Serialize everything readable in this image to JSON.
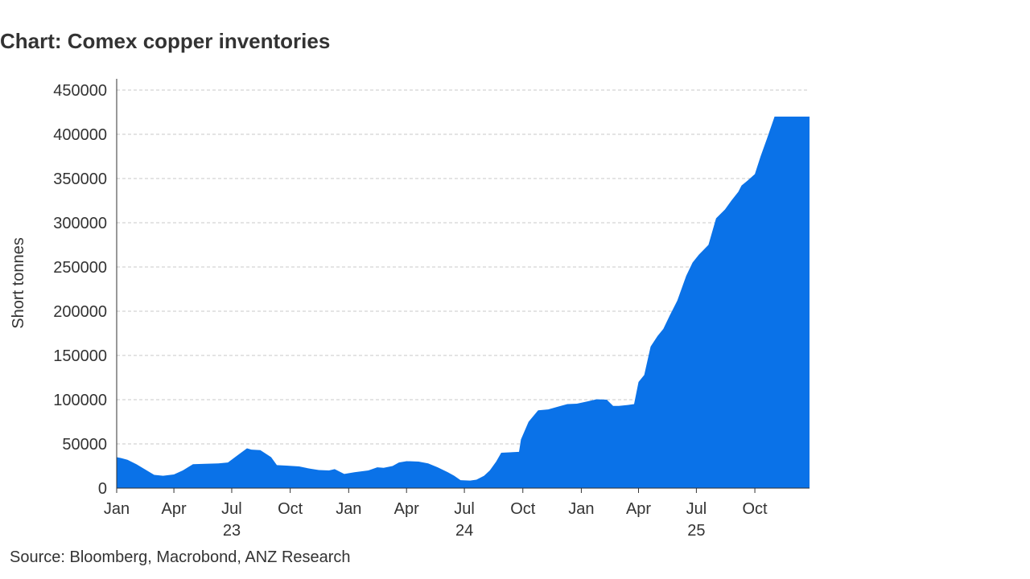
{
  "title": "Chart: Comex copper inventories",
  "source": "Source: Bloomberg, Macrobond, ANZ Research",
  "colors": {
    "area": "#0A72E8",
    "grid": "#C8C8C8",
    "axis": "#333333",
    "text": "#333333"
  },
  "chart_data": {
    "type": "area",
    "title": "Chart: Comex copper inventories",
    "ylabel": "Short tonnes",
    "xlabel": "",
    "ylim": [
      0,
      450000
    ],
    "yticks": [
      0,
      50000,
      100000,
      150000,
      200000,
      250000,
      300000,
      350000,
      400000,
      450000
    ],
    "xlim": [
      "2023-01-01",
      "2025-12-26"
    ],
    "xticks": [
      {
        "date": "2023-01-01",
        "label": "Jan",
        "year": ""
      },
      {
        "date": "2023-04-01",
        "label": "Apr",
        "year": ""
      },
      {
        "date": "2023-07-01",
        "label": "Jul",
        "year": "23"
      },
      {
        "date": "2023-10-01",
        "label": "Oct",
        "year": ""
      },
      {
        "date": "2024-01-01",
        "label": "Jan",
        "year": ""
      },
      {
        "date": "2024-04-01",
        "label": "Apr",
        "year": ""
      },
      {
        "date": "2024-07-01",
        "label": "Jul",
        "year": "24"
      },
      {
        "date": "2024-10-01",
        "label": "Oct",
        "year": ""
      },
      {
        "date": "2025-01-01",
        "label": "Jan",
        "year": ""
      },
      {
        "date": "2025-04-01",
        "label": "Apr",
        "year": ""
      },
      {
        "date": "2025-07-01",
        "label": "Jul",
        "year": "25"
      },
      {
        "date": "2025-10-01",
        "label": "Oct",
        "year": ""
      }
    ],
    "grid": true,
    "series": [
      {
        "x": [
          "2023-01-01",
          "2023-01-08",
          "2023-01-18",
          "2023-02-01",
          "2023-02-15",
          "2023-03-01",
          "2023-03-15",
          "2023-04-01",
          "2023-04-15",
          "2023-05-01",
          "2023-05-20",
          "2023-06-10",
          "2023-06-25",
          "2023-07-10",
          "2023-07-25",
          "2023-08-01",
          "2023-08-15",
          "2023-09-01",
          "2023-09-10",
          "2023-09-25",
          "2023-10-15",
          "2023-11-01",
          "2023-11-15",
          "2023-12-01",
          "2023-12-10",
          "2023-12-25",
          "2024-01-10",
          "2024-02-01",
          "2024-02-15",
          "2024-02-25",
          "2024-03-10",
          "2024-03-20",
          "2024-04-01",
          "2024-04-20",
          "2024-05-05",
          "2024-05-20",
          "2024-06-05",
          "2024-06-15",
          "2024-06-25",
          "2024-07-10",
          "2024-07-20",
          "2024-08-01",
          "2024-08-10",
          "2024-08-20",
          "2024-08-28",
          "2024-09-10",
          "2024-09-25",
          "2024-09-28",
          "2024-10-10",
          "2024-10-25",
          "2024-11-10",
          "2024-11-25",
          "2024-12-10",
          "2024-12-25",
          "2025-01-10",
          "2025-01-25",
          "2025-02-10",
          "2025-02-20",
          "2025-03-01",
          "2025-03-15",
          "2025-03-25",
          "2025-04-01",
          "2025-04-10",
          "2025-04-20",
          "2025-05-01",
          "2025-05-10",
          "2025-05-20",
          "2025-06-01",
          "2025-06-15",
          "2025-06-25",
          "2025-07-05",
          "2025-07-20",
          "2025-08-01",
          "2025-08-15",
          "2025-08-25",
          "2025-09-05",
          "2025-09-10",
          "2025-09-20",
          "2025-10-01",
          "2025-10-10",
          "2025-10-20",
          "2025-11-01",
          "2025-11-10",
          "2025-11-20",
          "2025-12-01",
          "2025-12-10",
          "2025-12-18",
          "2025-12-26"
        ],
        "y": [
          35000,
          34000,
          32000,
          27000,
          21000,
          15000,
          14000,
          15500,
          20000,
          27000,
          27500,
          28000,
          29000,
          37000,
          45000,
          43500,
          43000,
          35000,
          26000,
          25500,
          24500,
          22000,
          20500,
          20000,
          21500,
          16000,
          18000,
          20000,
          23500,
          23000,
          25000,
          29000,
          30500,
          30000,
          28000,
          23500,
          18000,
          14000,
          9000,
          8500,
          9500,
          14000,
          20000,
          30000,
          40000,
          40500,
          41000,
          55000,
          75000,
          88000,
          89000,
          92000,
          95000,
          95500,
          98000,
          100500,
          100000,
          93000,
          93000,
          94000,
          95000,
          120000,
          128000,
          160000,
          172000,
          180000,
          195000,
          212000,
          240000,
          255000,
          264000,
          275000,
          305000,
          315000,
          325000,
          335000,
          342000,
          348000,
          355000,
          375000,
          395000,
          420000,
          420000,
          420000,
          420000,
          420000,
          420000,
          420000
        ]
      }
    ]
  }
}
